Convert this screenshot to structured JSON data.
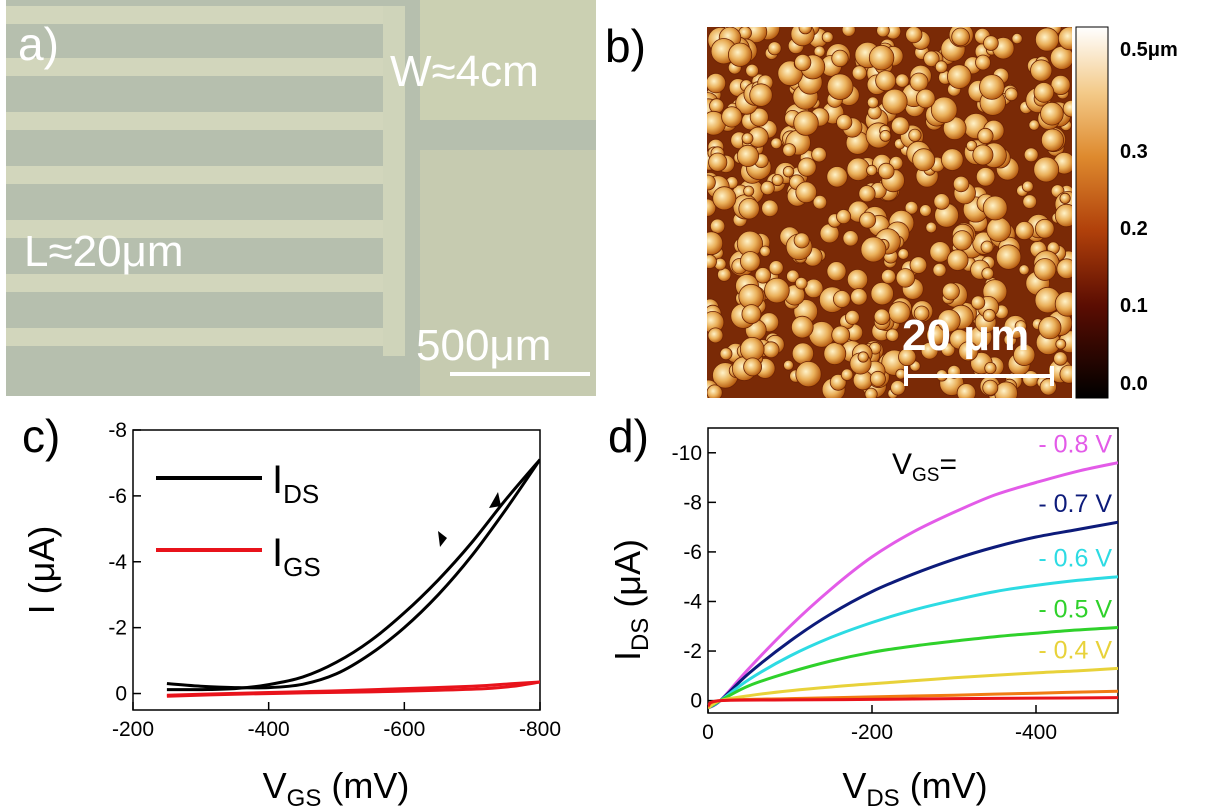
{
  "panels": {
    "a": {
      "label": "a)",
      "width_text": "W≈4cm",
      "length_text": "L≈20μm",
      "scalebar_text": "500μm"
    },
    "b": {
      "label": "b)",
      "scalebar_text": "20 μm",
      "colorbar_labels": [
        "0.5μm",
        "0.3",
        "0.2",
        "0.1",
        "0.0"
      ]
    }
  },
  "chart_data": [
    {
      "panel": "c)",
      "type": "line",
      "xlabel_main": "V",
      "xlabel_sub": "GS",
      "xlabel_unit": " (mV)",
      "ylabel": "I (μA)",
      "xlim": [
        -200,
        -800
      ],
      "ylim": [
        0.5,
        -8
      ],
      "xticks": [
        -200,
        -400,
        -600,
        -800
      ],
      "xtick_labels": [
        "-200",
        "-400",
        "-600",
        "-800"
      ],
      "yticks": [
        0,
        -2,
        -4,
        -6,
        -8
      ],
      "ytick_labels": [
        "0",
        "-2",
        "-4",
        "-6",
        "-8"
      ],
      "legend": [
        {
          "main": "I",
          "sub": "DS",
          "color": "#000000"
        },
        {
          "main": "I",
          "sub": "GS",
          "color": "#e8131b"
        }
      ],
      "series": [
        {
          "name": "IDS",
          "color": "#000000",
          "forward": {
            "x": [
              -250,
              -300,
              -350,
              -400,
              -450,
              -500,
              -550,
              -600,
              -650,
              -700,
              -750,
              -800
            ],
            "y": [
              -0.3,
              -0.22,
              -0.18,
              -0.18,
              -0.28,
              -0.6,
              -1.2,
              -2.0,
              -3.0,
              -4.2,
              -5.6,
              -7.1
            ]
          },
          "reverse": {
            "x": [
              -800,
              -750,
              -700,
              -650,
              -600,
              -550,
              -500,
              -450,
              -400,
              -350,
              -300,
              -250
            ],
            "y": [
              -7.1,
              -5.9,
              -4.6,
              -3.45,
              -2.45,
              -1.6,
              -0.95,
              -0.5,
              -0.27,
              -0.15,
              -0.12,
              -0.12
            ]
          }
        },
        {
          "name": "IGS",
          "color": "#e8131b",
          "forward": {
            "x": [
              -250,
              -350,
              -450,
              -550,
              -650,
              -720,
              -760,
              -800
            ],
            "y": [
              0.08,
              0.02,
              -0.02,
              -0.05,
              -0.1,
              -0.15,
              -0.22,
              -0.35
            ]
          },
          "reverse": {
            "x": [
              -800,
              -760,
              -700,
              -600,
              -500,
              -400,
              -300,
              -250
            ],
            "y": [
              -0.35,
              -0.3,
              -0.22,
              -0.15,
              -0.08,
              -0.03,
              0.02,
              0.05
            ]
          }
        }
      ]
    },
    {
      "panel": "d)",
      "type": "line",
      "xlabel_main": "V",
      "xlabel_sub": "DS",
      "xlabel_unit": " (mV)",
      "ylabel_main": "I",
      "ylabel_sub": "DS",
      "ylabel_unit": " (μA)",
      "xlim": [
        0,
        -500
      ],
      "ylim": [
        0.5,
        -11
      ],
      "xticks": [
        0,
        -200,
        -400
      ],
      "xtick_labels": [
        "0",
        "-200",
        "-400"
      ],
      "yticks": [
        0,
        -2,
        -4,
        -6,
        -8,
        -10
      ],
      "ytick_labels": [
        "0",
        "-2",
        "-4",
        "-6",
        "-8",
        "-10"
      ],
      "legend_title_main": "V",
      "legend_title_sub": "GS",
      "legend_title_suffix": "=",
      "series": [
        {
          "label": "- 0.8 V",
          "color": "#e35be8",
          "x": [
            0,
            -15,
            -50,
            -100,
            -150,
            -200,
            -250,
            -300,
            -350,
            -400,
            -450,
            -500
          ],
          "y": [
            0.3,
            0,
            -1.3,
            -3.0,
            -4.5,
            -5.8,
            -6.8,
            -7.6,
            -8.3,
            -8.8,
            -9.25,
            -9.6
          ]
        },
        {
          "label": "- 0.7 V",
          "color": "#0d1b7a",
          "x": [
            0,
            -15,
            -50,
            -100,
            -150,
            -200,
            -250,
            -300,
            -350,
            -400,
            -450,
            -500
          ],
          "y": [
            0.3,
            0,
            -1.1,
            -2.4,
            -3.5,
            -4.4,
            -5.1,
            -5.7,
            -6.2,
            -6.6,
            -6.9,
            -7.2
          ]
        },
        {
          "label": "- 0.6 V",
          "color": "#2ddbe3",
          "x": [
            0,
            -15,
            -50,
            -100,
            -150,
            -200,
            -250,
            -300,
            -350,
            -400,
            -450,
            -500
          ],
          "y": [
            0.3,
            0,
            -0.85,
            -1.8,
            -2.55,
            -3.15,
            -3.65,
            -4.05,
            -4.4,
            -4.65,
            -4.85,
            -5.0
          ]
        },
        {
          "label": "- 0.5 V",
          "color": "#2fd12b",
          "x": [
            0,
            -15,
            -50,
            -100,
            -150,
            -200,
            -250,
            -300,
            -350,
            -400,
            -450,
            -500
          ],
          "y": [
            0.3,
            0,
            -0.6,
            -1.15,
            -1.6,
            -1.95,
            -2.2,
            -2.4,
            -2.58,
            -2.72,
            -2.85,
            -2.95
          ]
        },
        {
          "label": "- 0.4 V",
          "color": "#e8d23a",
          "x": [
            0,
            -15,
            -50,
            -100,
            -150,
            -200,
            -250,
            -300,
            -350,
            -400,
            -450,
            -500
          ],
          "y": [
            0.3,
            0,
            -0.2,
            -0.4,
            -0.55,
            -0.68,
            -0.8,
            -0.92,
            -1.02,
            -1.12,
            -1.2,
            -1.3
          ]
        },
        {
          "label": "",
          "color": "#f07b14",
          "x": [
            0,
            -15,
            -100,
            -200,
            -300,
            -400,
            -500
          ],
          "y": [
            0.25,
            0,
            -0.08,
            -0.15,
            -0.22,
            -0.3,
            -0.38
          ]
        },
        {
          "label": "",
          "color": "#e8131b",
          "x": [
            0,
            -15,
            -100,
            -200,
            -300,
            -400,
            -500
          ],
          "y": [
            0.2,
            0,
            -0.03,
            -0.05,
            -0.08,
            -0.1,
            -0.12
          ]
        }
      ]
    }
  ]
}
